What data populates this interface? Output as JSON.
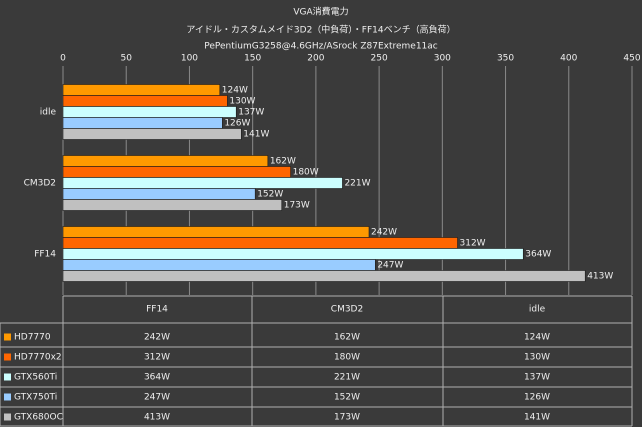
{
  "chart_data": {
    "type": "hbar",
    "title": "VGA消費電力",
    "subtitle": "アイドル・カスタムメイド3D2（中負荷）・FF14ベンチ（高負荷）",
    "note": "PePentiumG3258@4.6GHz/ASrock Z87Extreme11ac",
    "categories": [
      "idle",
      "CM3D2",
      "FF14"
    ],
    "series": [
      {
        "name": "HD7770",
        "color": "#ff9900",
        "values": [
          124,
          162,
          242
        ],
        "value_labels": [
          "124W",
          "162W",
          "242W"
        ]
      },
      {
        "name": "HD7770x2",
        "color": "#ff6600",
        "values": [
          130,
          180,
          312
        ],
        "value_labels": [
          "130W",
          "180W",
          "312W"
        ]
      },
      {
        "name": "GTX560Ti",
        "color": "#ccffff",
        "values": [
          137,
          221,
          364
        ],
        "value_labels": [
          "137W",
          "221W",
          "364W"
        ]
      },
      {
        "name": "GTX750Ti",
        "color": "#99ccff",
        "values": [
          126,
          152,
          247
        ],
        "value_labels": [
          "126W",
          "152W",
          "247W"
        ]
      },
      {
        "name": "GTX680OC",
        "color": "#c0c0c0",
        "values": [
          141,
          173,
          413
        ],
        "value_labels": [
          "141W",
          "173W",
          "413W"
        ]
      }
    ],
    "xlim": [
      0,
      450
    ],
    "xticks": [
      0,
      50,
      100,
      150,
      200,
      250,
      300,
      350,
      400,
      450
    ],
    "grid": true
  }
}
